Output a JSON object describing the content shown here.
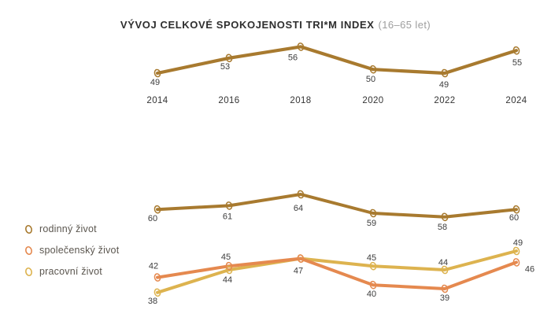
{
  "title": {
    "main": "VÝVOJ CELKOVÉ SPOKOJENOSTI TRI*M INDEX",
    "suffix": "(16–65 let)"
  },
  "colors": {
    "brand_gold": "#A87A2F",
    "orange": "#E5894F",
    "yellow": "#DDB34F",
    "label_text": "#3C3C3C",
    "title_text": "#2E2E2E",
    "subtitle_text": "#9E9E9E"
  },
  "chart_data": [
    {
      "type": "line",
      "title": "VÝVOJ CELKOVÉ SPOKOJENOSTI TRI*M INDEX (16–65 let)",
      "categories": [
        "2014",
        "2016",
        "2018",
        "2020",
        "2022",
        "2024"
      ],
      "x_axis_labels_visible": true,
      "grid": false,
      "ylim": [
        45,
        60
      ],
      "series": [
        {
          "name": "TRI*M Index",
          "color": "#A87A2F",
          "values": [
            49,
            53,
            56,
            50,
            49,
            55
          ],
          "label_offsets": [
            [
              -3,
              15
            ],
            [
              -5,
              14
            ],
            [
              -10,
              17
            ],
            [
              -3,
              16
            ],
            [
              -1,
              18
            ],
            [
              1,
              19
            ]
          ]
        }
      ]
    },
    {
      "type": "line",
      "title": "",
      "categories": [
        "2014",
        "2016",
        "2018",
        "2020",
        "2022",
        "2024"
      ],
      "x_axis_labels_visible": false,
      "grid": false,
      "legend_position": "left",
      "ylim": [
        35,
        68
      ],
      "draw_order": [
        0,
        2,
        1
      ],
      "series": [
        {
          "name": "rodinný život",
          "color": "#A87A2F",
          "values": [
            60,
            61,
            64,
            59,
            58,
            60
          ],
          "label_offsets": [
            [
              -6,
              15
            ],
            [
              -2,
              17
            ],
            [
              -3,
              21
            ],
            [
              -2,
              16
            ],
            [
              -3,
              16
            ],
            [
              -3,
              14
            ]
          ]
        },
        {
          "name": "společenský život",
          "color": "#E5894F",
          "values": [
            42,
            45,
            47,
            40,
            39,
            46
          ],
          "label_offsets": [
            [
              -5,
              -11
            ],
            [
              -4,
              -8
            ],
            [
              -3,
              19
            ],
            [
              -2,
              15
            ],
            [
              0,
              15
            ],
            [
              17,
              12
            ]
          ]
        },
        {
          "name": "pracovní život",
          "color": "#DDB34F",
          "values": [
            38,
            44,
            47,
            45,
            44,
            49
          ],
          "label_offsets": [
            [
              -6,
              14
            ],
            [
              -2,
              16
            ],
            null,
            [
              -2,
              -7
            ],
            [
              -2,
              -6
            ],
            [
              2,
              -7
            ]
          ]
        }
      ]
    }
  ]
}
